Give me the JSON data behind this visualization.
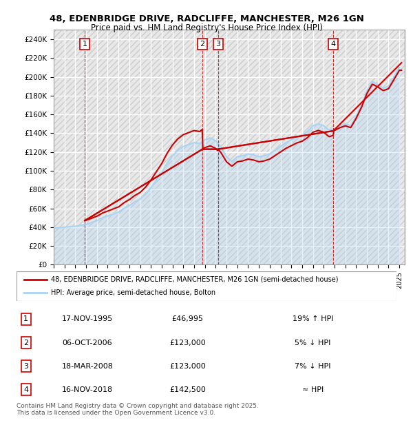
{
  "title1": "48, EDENBRIDGE DRIVE, RADCLIFFE, MANCHESTER, M26 1GN",
  "title2": "Price paid vs. HM Land Registry's House Price Index (HPI)",
  "legend_line1": "48, EDENBRIDGE DRIVE, RADCLIFFE, MANCHESTER, M26 1GN (semi-detached house)",
  "legend_line2": "HPI: Average price, semi-detached house, Bolton",
  "footer": "Contains HM Land Registry data © Crown copyright and database right 2025.\nThis data is licensed under the Open Government Licence v3.0.",
  "transactions": [
    {
      "num": 1,
      "date": "17-NOV-1995",
      "price": 46995,
      "label": "19% ↑ HPI",
      "x_year": 1995.88
    },
    {
      "num": 2,
      "date": "06-OCT-2006",
      "price": 123000,
      "label": "5% ↓ HPI",
      "x_year": 2006.77
    },
    {
      "num": 3,
      "date": "18-MAR-2008",
      "price": 123000,
      "label": "7% ↓ HPI",
      "x_year": 2008.21
    },
    {
      "num": 4,
      "date": "16-NOV-2018",
      "price": 142500,
      "label": "≈ HPI",
      "x_year": 2018.88
    }
  ],
  "hpi_data": {
    "years": [
      1993.0,
      1993.5,
      1994.0,
      1994.5,
      1995.0,
      1995.5,
      1996.0,
      1996.5,
      1997.0,
      1997.5,
      1998.0,
      1998.5,
      1999.0,
      1999.5,
      2000.0,
      2000.5,
      2001.0,
      2001.5,
      2002.0,
      2002.5,
      2003.0,
      2003.5,
      2004.0,
      2004.5,
      2005.0,
      2005.5,
      2006.0,
      2006.5,
      2007.0,
      2007.5,
      2008.0,
      2008.5,
      2009.0,
      2009.5,
      2010.0,
      2010.5,
      2011.0,
      2011.5,
      2012.0,
      2012.5,
      2013.0,
      2013.5,
      2014.0,
      2014.5,
      2015.0,
      2015.5,
      2016.0,
      2016.5,
      2017.0,
      2017.5,
      2018.0,
      2018.5,
      2019.0,
      2019.5,
      2020.0,
      2020.5,
      2021.0,
      2021.5,
      2022.0,
      2022.5,
      2023.0,
      2023.5,
      2024.0,
      2024.5,
      2025.0
    ],
    "values": [
      39000,
      39500,
      40000,
      40500,
      41000,
      42000,
      43000,
      45000,
      47000,
      50000,
      52000,
      54000,
      56000,
      60000,
      63000,
      67000,
      70000,
      75000,
      82000,
      90000,
      98000,
      108000,
      116000,
      122000,
      126000,
      128000,
      130000,
      129000,
      133000,
      135000,
      132000,
      125000,
      115000,
      110000,
      115000,
      116000,
      118000,
      117000,
      115000,
      116000,
      118000,
      122000,
      126000,
      130000,
      133000,
      136000,
      138000,
      142000,
      148000,
      150000,
      148000,
      143000,
      145000,
      148000,
      150000,
      148000,
      158000,
      170000,
      185000,
      195000,
      192000,
      188000,
      190000,
      200000,
      210000
    ]
  },
  "price_paid_data": {
    "years": [
      1995.88,
      2006.77,
      2008.21,
      2018.88
    ],
    "values": [
      46995,
      123000,
      123000,
      142500
    ]
  },
  "ylim": [
    0,
    250000
  ],
  "yticks": [
    0,
    20000,
    40000,
    60000,
    80000,
    100000,
    120000,
    140000,
    160000,
    180000,
    200000,
    220000,
    240000
  ],
  "xlim": [
    1993,
    2025.5
  ],
  "xticks": [
    1993,
    1994,
    1995,
    1996,
    1997,
    1998,
    1999,
    2000,
    2001,
    2002,
    2003,
    2004,
    2005,
    2006,
    2007,
    2008,
    2009,
    2010,
    2011,
    2012,
    2013,
    2014,
    2015,
    2016,
    2017,
    2018,
    2019,
    2020,
    2021,
    2022,
    2023,
    2024,
    2025
  ],
  "hpi_color": "#aad4f5",
  "price_color": "#cc0000",
  "bg_color": "#ffffff",
  "plot_bg_color": "#f0f0f0",
  "grid_color": "#ffffff",
  "marker_box_color": "#cc0000",
  "vline_color": "#cc0000"
}
